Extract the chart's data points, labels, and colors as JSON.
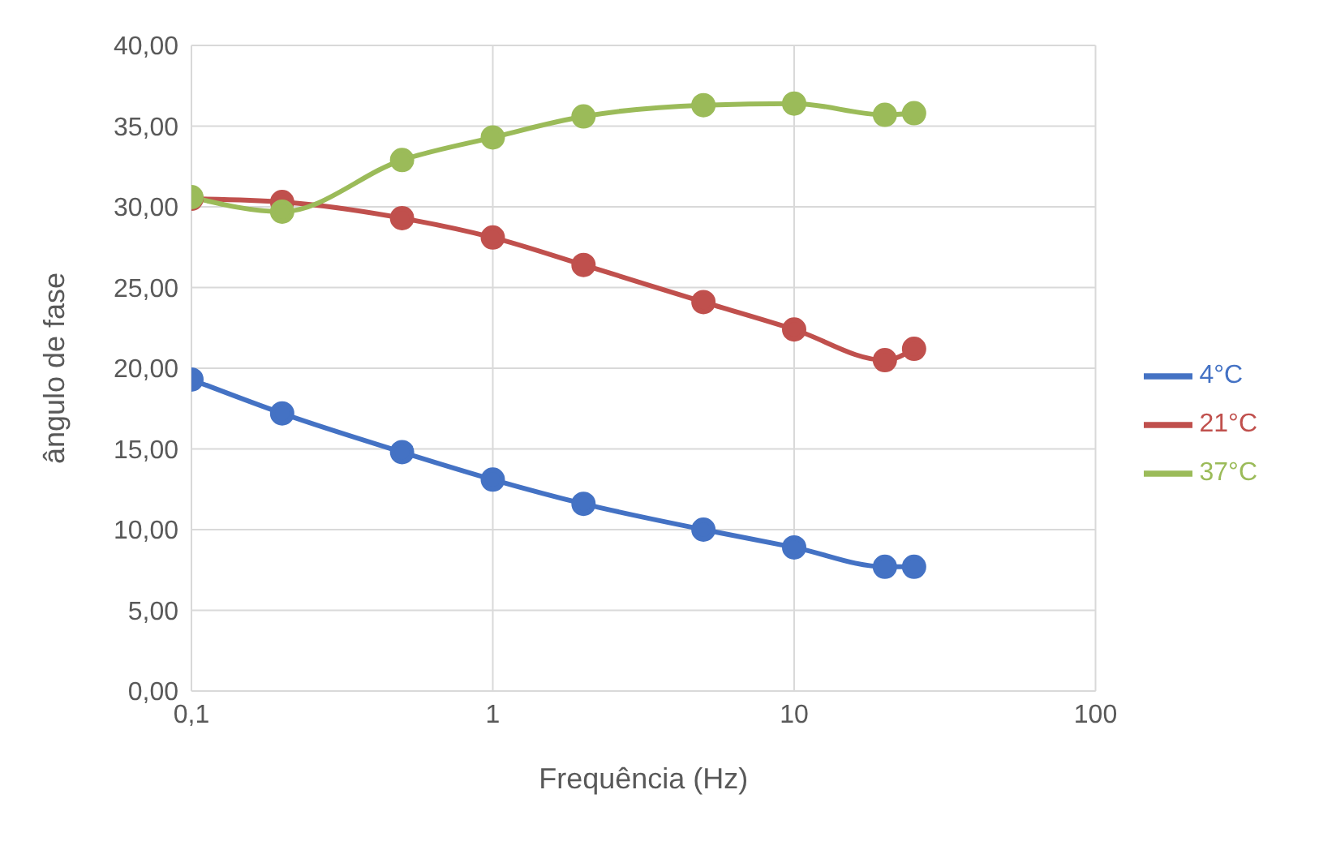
{
  "chart_data": {
    "type": "line",
    "xlabel": "Frequência (Hz)",
    "ylabel": "ângulo de fase",
    "log": "x",
    "grid": true,
    "legend": "right",
    "marker": "circle",
    "line_style": "solid",
    "x": [
      0.1,
      0.2,
      0.5,
      1,
      2,
      5,
      10,
      20,
      25
    ],
    "xlim": [
      0.1,
      100
    ],
    "xticks": [
      {
        "value": 0.1,
        "label": "0,1"
      },
      1,
      10,
      100
    ],
    "ylim": [
      0,
      40
    ],
    "yticks": [
      {
        "value": 0,
        "label": "0,00"
      },
      {
        "value": 5,
        "label": "5,00"
      },
      {
        "value": 10,
        "label": "10,00"
      },
      {
        "value": 15,
        "label": "15,00"
      },
      {
        "value": 20,
        "label": "20,00"
      },
      {
        "value": 25,
        "label": "25,00"
      },
      {
        "value": 30,
        "label": "30,00"
      },
      {
        "value": 35,
        "label": "35,00"
      },
      {
        "value": 40,
        "label": "40,00"
      }
    ],
    "series": [
      {
        "name": "4°C",
        "color": "#4472c4",
        "values": [
          19.3,
          17.2,
          14.8,
          13.1,
          11.6,
          10.0,
          8.9,
          7.7,
          7.7
        ]
      },
      {
        "name": "21°C",
        "color": "#c0504d",
        "values": [
          30.5,
          30.3,
          29.3,
          28.1,
          26.4,
          24.1,
          22.4,
          20.5,
          21.2
        ]
      },
      {
        "name": "37°C",
        "color": "#9bbb59",
        "values": [
          30.6,
          29.7,
          32.9,
          34.3,
          35.6,
          36.3,
          36.4,
          35.7,
          35.8
        ]
      }
    ]
  }
}
